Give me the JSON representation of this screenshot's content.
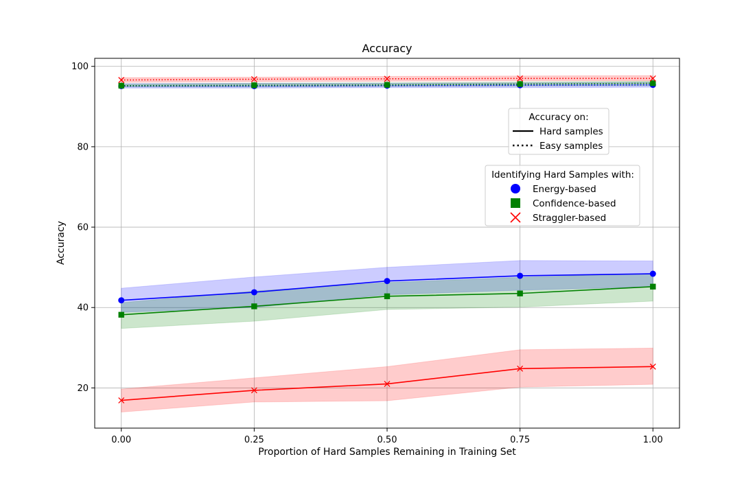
{
  "chart_data": {
    "type": "line",
    "title": "Accuracy",
    "xlabel": "Proportion of Hard Samples Remaining in Training Set",
    "ylabel": "Accuracy",
    "x": [
      0.0,
      0.25,
      0.5,
      0.75,
      1.0
    ],
    "x_tick_labels": [
      "0.00",
      "0.25",
      "0.50",
      "0.75",
      "1.00"
    ],
    "xlim": [
      -0.05,
      1.05
    ],
    "ylim": [
      10,
      102
    ],
    "y_ticks": [
      20,
      40,
      60,
      80,
      100
    ],
    "y_tick_labels": [
      "20",
      "40",
      "60",
      "80",
      "100"
    ],
    "grid": true,
    "legend_style": {
      "title": "Accuracy on:",
      "placement": "upper-right",
      "entries": [
        {
          "label": "Hard samples",
          "linestyle": "solid"
        },
        {
          "label": "Easy samples",
          "linestyle": "dotted"
        }
      ]
    },
    "legend_method": {
      "title": "Identifying Hard Samples with:",
      "placement": "center-right",
      "entries": [
        {
          "label": "Energy-based",
          "marker": "circle",
          "color": "#0000ff"
        },
        {
          "label": "Confidence-based",
          "marker": "square",
          "color": "#008000"
        },
        {
          "label": "Straggler-based",
          "marker": "x",
          "color": "#ff0000"
        }
      ]
    },
    "series": [
      {
        "method": "Energy-based",
        "subset": "Hard samples",
        "color": "#0000ff",
        "marker": "circle",
        "linestyle": "solid",
        "values": [
          41.8,
          43.8,
          46.6,
          47.9,
          48.4
        ],
        "lower": [
          38.8,
          40.0,
          43.2,
          44.3,
          45.2
        ],
        "upper": [
          44.8,
          47.6,
          50.0,
          51.7,
          51.6
        ]
      },
      {
        "method": "Confidence-based",
        "subset": "Hard samples",
        "color": "#008000",
        "marker": "square",
        "linestyle": "solid",
        "values": [
          38.2,
          40.3,
          42.8,
          43.5,
          45.2
        ],
        "lower": [
          34.8,
          36.6,
          39.5,
          40.1,
          41.6
        ],
        "upper": [
          41.2,
          44.1,
          46.2,
          47.5,
          48.5
        ]
      },
      {
        "method": "Straggler-based",
        "subset": "Hard samples",
        "color": "#ff0000",
        "marker": "x",
        "linestyle": "solid",
        "values": [
          16.9,
          19.4,
          21.0,
          24.8,
          25.3
        ],
        "lower": [
          14.0,
          16.5,
          16.8,
          20.2,
          20.9
        ],
        "upper": [
          19.7,
          22.5,
          25.3,
          29.5,
          29.9
        ]
      },
      {
        "method": "Energy-based",
        "subset": "Easy samples",
        "color": "#0000ff",
        "marker": "circle",
        "linestyle": "dotted",
        "values": [
          95.1,
          95.1,
          95.2,
          95.3,
          95.4
        ],
        "lower": [
          94.6,
          94.6,
          94.7,
          94.7,
          94.8
        ],
        "upper": [
          95.7,
          95.8,
          95.8,
          95.9,
          96.0
        ]
      },
      {
        "method": "Confidence-based",
        "subset": "Easy samples",
        "color": "#008000",
        "marker": "square",
        "linestyle": "dotted",
        "values": [
          95.2,
          95.3,
          95.4,
          95.6,
          95.8
        ],
        "lower": [
          94.9,
          94.9,
          95.0,
          95.1,
          95.2
        ],
        "upper": [
          95.6,
          95.8,
          95.9,
          96.1,
          96.3
        ]
      },
      {
        "method": "Straggler-based",
        "subset": "Easy samples",
        "color": "#ff0000",
        "marker": "x",
        "linestyle": "dotted",
        "values": [
          96.6,
          96.8,
          96.9,
          97.0,
          97.0
        ],
        "lower": [
          96.0,
          96.2,
          96.3,
          96.4,
          96.4
        ],
        "upper": [
          97.2,
          97.3,
          97.5,
          97.6,
          97.7
        ]
      }
    ]
  }
}
